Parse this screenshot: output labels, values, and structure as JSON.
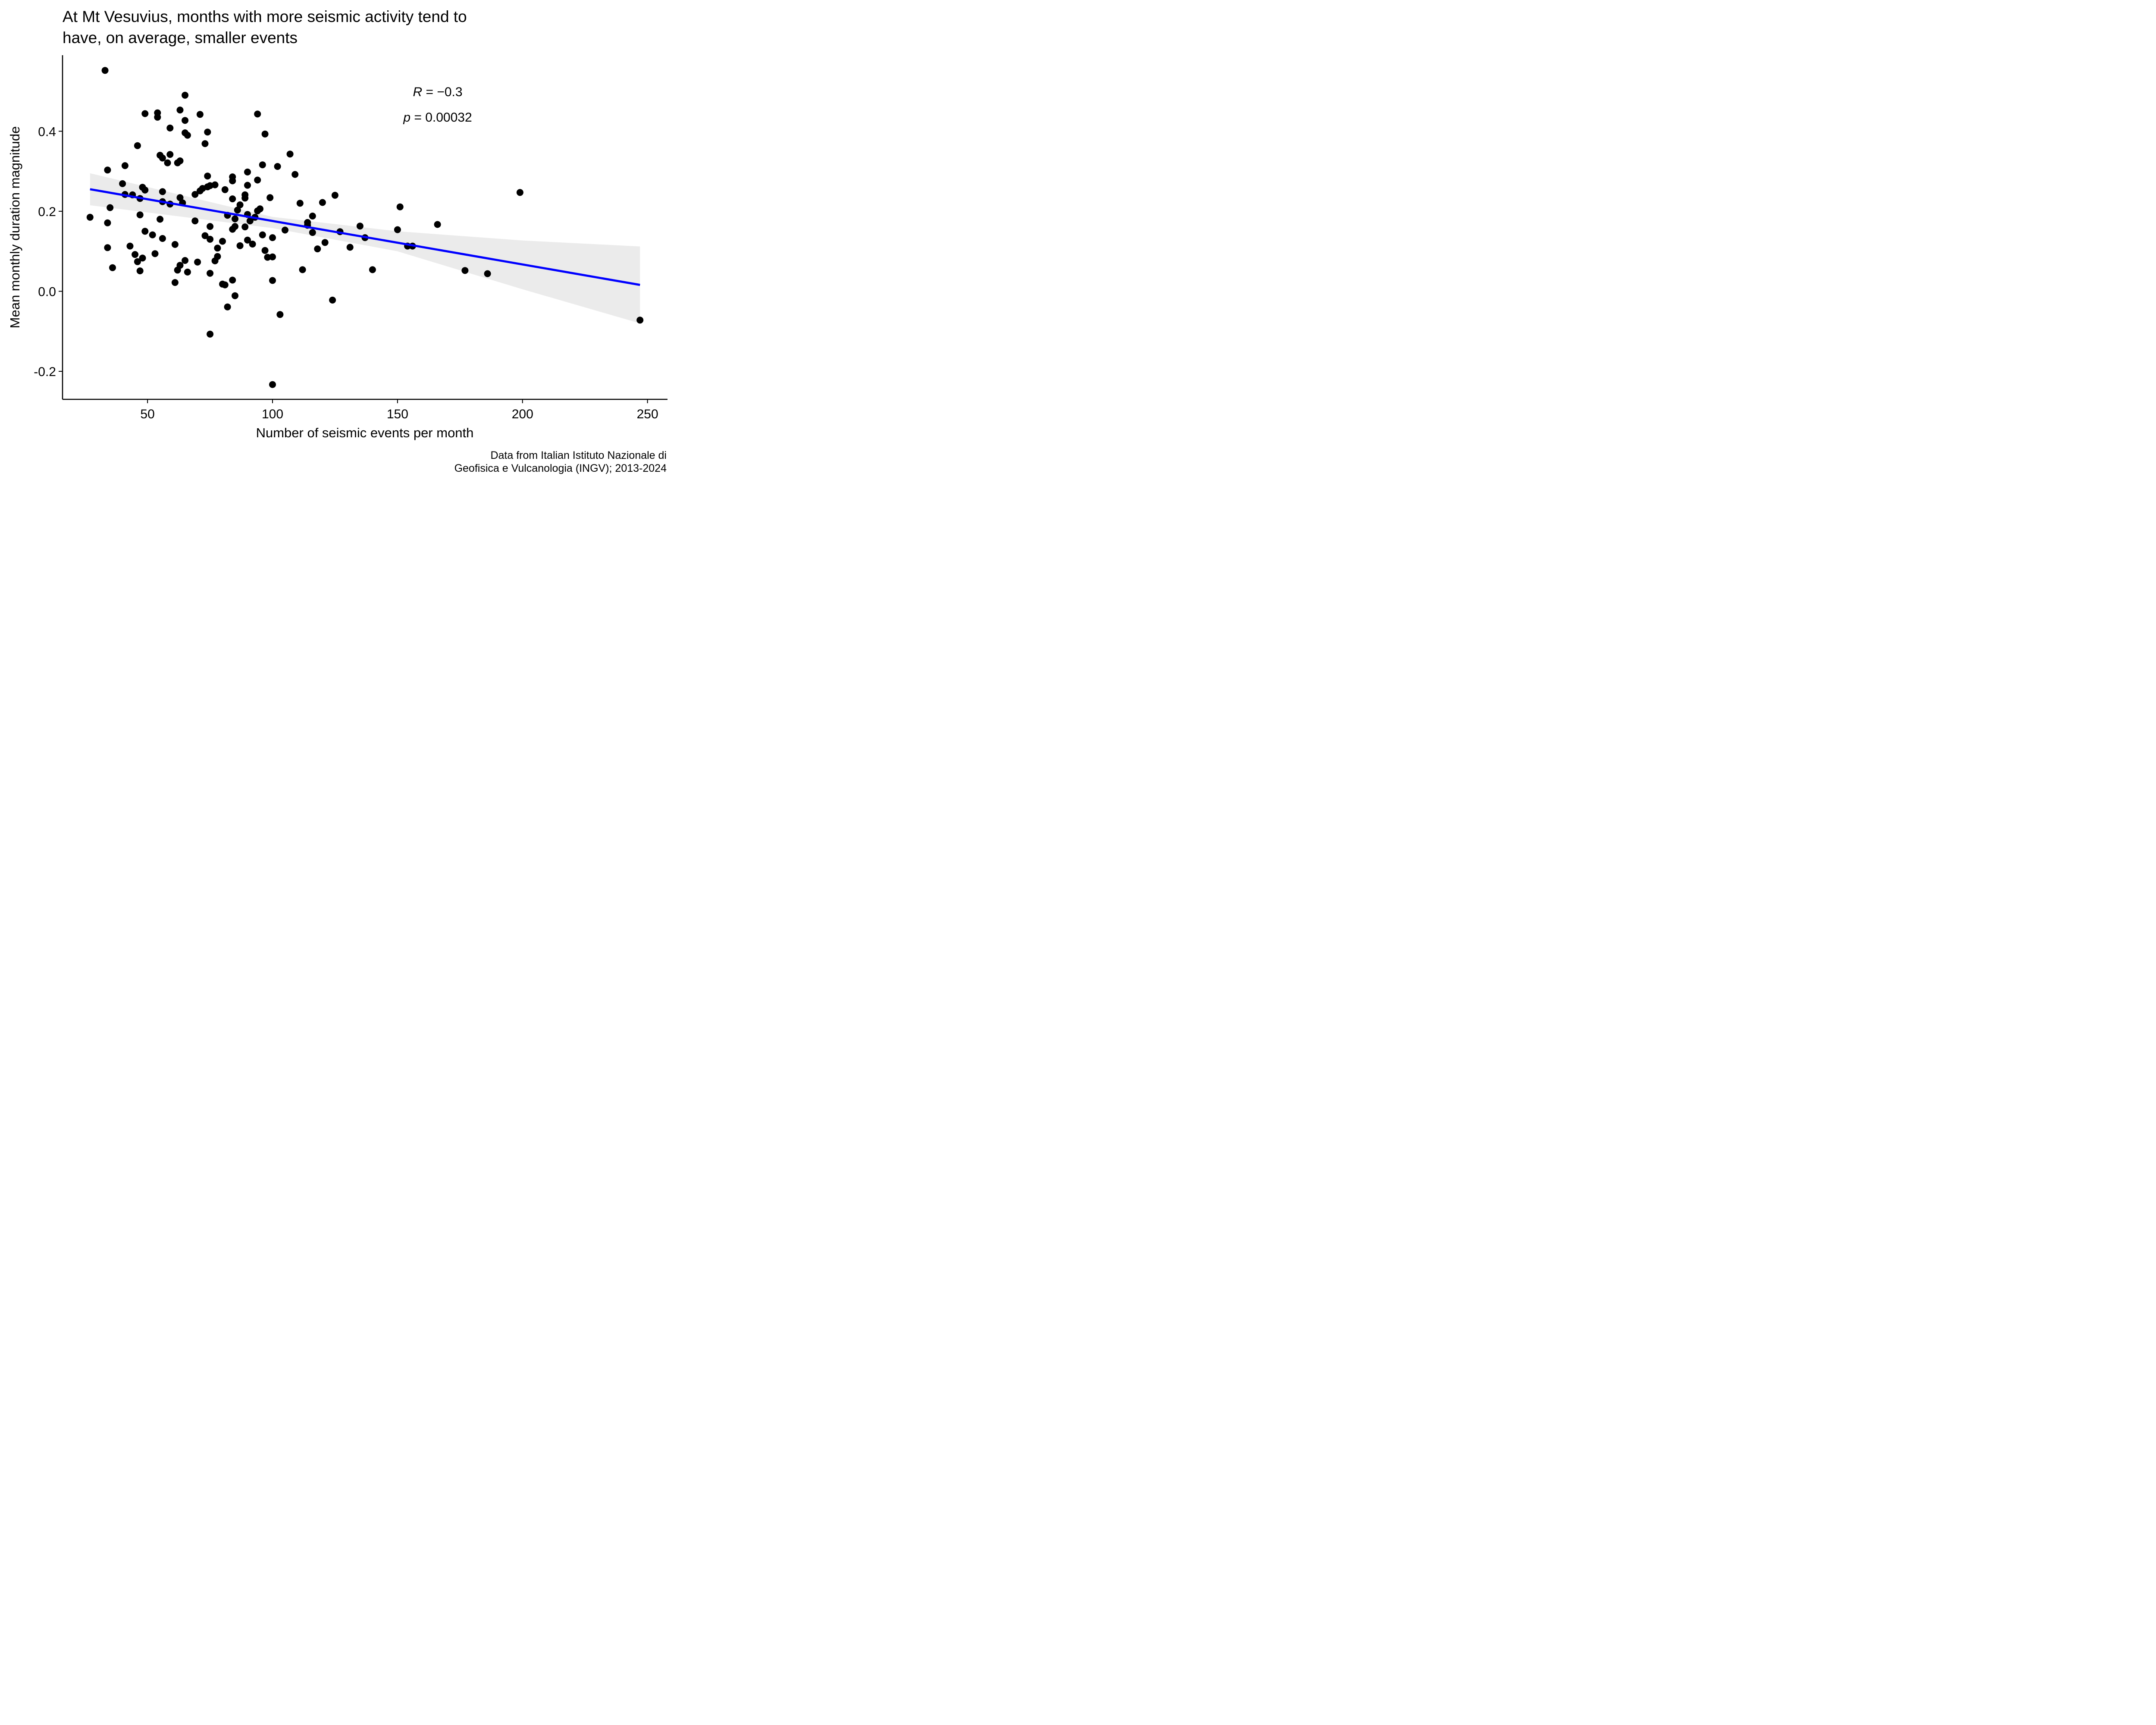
{
  "chart_data": {
    "type": "scatter",
    "title_lines": [
      "At Mt Vesuvius, months with more seismic activity tend to",
      "have, on average, smaller events"
    ],
    "xlabel": "Number of seismic events per month",
    "ylabel": "Mean monthly duration magnitude",
    "caption_lines": [
      "Data from Italian Istituto Nazionale di",
      "Geofisica e Vulcanologia (INGV); 2013-2024"
    ],
    "xlim": [
      16,
      258
    ],
    "ylim": [
      -0.27,
      0.59
    ],
    "x_ticks": [
      50,
      100,
      150,
      200,
      250
    ],
    "x_tick_labels": [
      "50",
      "100",
      "150",
      "200",
      "250"
    ],
    "y_ticks": [
      -0.2,
      0.0,
      0.2,
      0.4
    ],
    "y_tick_labels": [
      "-0.2",
      "0.0",
      "0.2",
      "0.4"
    ],
    "grid": false,
    "annotations": {
      "r_symbol": "R",
      "r_rest": " = −0.3",
      "p_symbol": "p",
      "p_rest": " = 0.00032",
      "position_data": [
        162,
        0.495
      ]
    },
    "regression": {
      "x": [
        27,
        247
      ],
      "y": [
        0.255,
        0.016
      ],
      "color": "#0000ff",
      "band": {
        "x": [
          27,
          100,
          150,
          200,
          247
        ],
        "lower": [
          0.215,
          0.158,
          0.1,
          0.005,
          -0.08
        ],
        "upper": [
          0.295,
          0.186,
          0.15,
          0.127,
          0.112
        ],
        "color": "#ebebeb"
      }
    },
    "point_color": "#000000",
    "points": [
      [
        27,
        0.185
      ],
      [
        33,
        0.552
      ],
      [
        34,
        0.303
      ],
      [
        34,
        0.171
      ],
      [
        34,
        0.109
      ],
      [
        35,
        0.209
      ],
      [
        36,
        0.059
      ],
      [
        40,
        0.269
      ],
      [
        41,
        0.314
      ],
      [
        41,
        0.242
      ],
      [
        43,
        0.113
      ],
      [
        44,
        0.241
      ],
      [
        45,
        0.092
      ],
      [
        46,
        0.364
      ],
      [
        46,
        0.074
      ],
      [
        47,
        0.232
      ],
      [
        47,
        0.191
      ],
      [
        47,
        0.051
      ],
      [
        48,
        0.26
      ],
      [
        48,
        0.083
      ],
      [
        49,
        0.253
      ],
      [
        49,
        0.15
      ],
      [
        49,
        0.444
      ],
      [
        52,
        0.141
      ],
      [
        53,
        0.094
      ],
      [
        54,
        0.446
      ],
      [
        54,
        0.435
      ],
      [
        55,
        0.34
      ],
      [
        55,
        0.18
      ],
      [
        56,
        0.333
      ],
      [
        56,
        0.249
      ],
      [
        56,
        0.224
      ],
      [
        56,
        0.132
      ],
      [
        58,
        0.321
      ],
      [
        59,
        0.408
      ],
      [
        59,
        0.342
      ],
      [
        59,
        0.218
      ],
      [
        61,
        0.117
      ],
      [
        61,
        0.022
      ],
      [
        62,
        0.321
      ],
      [
        62,
        0.053
      ],
      [
        63,
        0.453
      ],
      [
        63,
        0.326
      ],
      [
        63,
        0.234
      ],
      [
        63,
        0.065
      ],
      [
        64,
        0.221
      ],
      [
        65,
        0.49
      ],
      [
        65,
        0.427
      ],
      [
        65,
        0.396
      ],
      [
        65,
        0.077
      ],
      [
        66,
        0.39
      ],
      [
        66,
        0.048
      ],
      [
        69,
        0.242
      ],
      [
        69,
        0.176
      ],
      [
        70,
        0.073
      ],
      [
        71,
        0.442
      ],
      [
        71,
        0.251
      ],
      [
        72,
        0.257
      ],
      [
        73,
        0.369
      ],
      [
        73,
        0.139
      ],
      [
        74,
        0.398
      ],
      [
        74,
        0.288
      ],
      [
        74,
        0.261
      ],
      [
        75,
        0.264
      ],
      [
        75,
        0.162
      ],
      [
        75,
        0.13
      ],
      [
        75,
        0.045
      ],
      [
        75,
        -0.107
      ],
      [
        77,
        0.266
      ],
      [
        77,
        0.076
      ],
      [
        78,
        0.108
      ],
      [
        78,
        0.087
      ],
      [
        80,
        0.125
      ],
      [
        80,
        0.018
      ],
      [
        81,
        0.254
      ],
      [
        81,
        0.016
      ],
      [
        82,
        0.19
      ],
      [
        82,
        -0.039
      ],
      [
        84,
        0.286
      ],
      [
        84,
        0.276
      ],
      [
        84,
        0.231
      ],
      [
        84,
        0.155
      ],
      [
        84,
        0.028
      ],
      [
        85,
        0.181
      ],
      [
        85,
        0.162
      ],
      [
        85,
        -0.011
      ],
      [
        86,
        0.203
      ],
      [
        87,
        0.216
      ],
      [
        87,
        0.114
      ],
      [
        89,
        0.241
      ],
      [
        89,
        0.233
      ],
      [
        89,
        0.161
      ],
      [
        90,
        0.298
      ],
      [
        90,
        0.265
      ],
      [
        90,
        0.192
      ],
      [
        90,
        0.128
      ],
      [
        91,
        0.176
      ],
      [
        92,
        0.118
      ],
      [
        93,
        0.185
      ],
      [
        94,
        0.443
      ],
      [
        94,
        0.278
      ],
      [
        94,
        0.201
      ],
      [
        95,
        0.206
      ],
      [
        96,
        0.316
      ],
      [
        96,
        0.141
      ],
      [
        97,
        0.393
      ],
      [
        97,
        0.102
      ],
      [
        98,
        0.085
      ],
      [
        99,
        0.234
      ],
      [
        100,
        0.134
      ],
      [
        100,
        0.086
      ],
      [
        100,
        0.027
      ],
      [
        100,
        -0.233
      ],
      [
        102,
        0.312
      ],
      [
        103,
        -0.058
      ],
      [
        105,
        0.153
      ],
      [
        107,
        0.343
      ],
      [
        109,
        0.292
      ],
      [
        111,
        0.22
      ],
      [
        112,
        0.054
      ],
      [
        114,
        0.172
      ],
      [
        114,
        0.165
      ],
      [
        116,
        0.188
      ],
      [
        116,
        0.147
      ],
      [
        118,
        0.106
      ],
      [
        120,
        0.222
      ],
      [
        121,
        0.122
      ],
      [
        124,
        -0.022
      ],
      [
        125,
        0.24
      ],
      [
        127,
        0.149
      ],
      [
        131,
        0.11
      ],
      [
        135,
        0.163
      ],
      [
        137,
        0.134
      ],
      [
        140,
        0.054
      ],
      [
        150,
        0.154
      ],
      [
        151,
        0.211
      ],
      [
        154,
        0.113
      ],
      [
        156,
        0.113
      ],
      [
        166,
        0.167
      ],
      [
        177,
        0.052
      ],
      [
        186,
        0.044
      ],
      [
        199,
        0.247
      ],
      [
        247,
        -0.072
      ]
    ]
  }
}
